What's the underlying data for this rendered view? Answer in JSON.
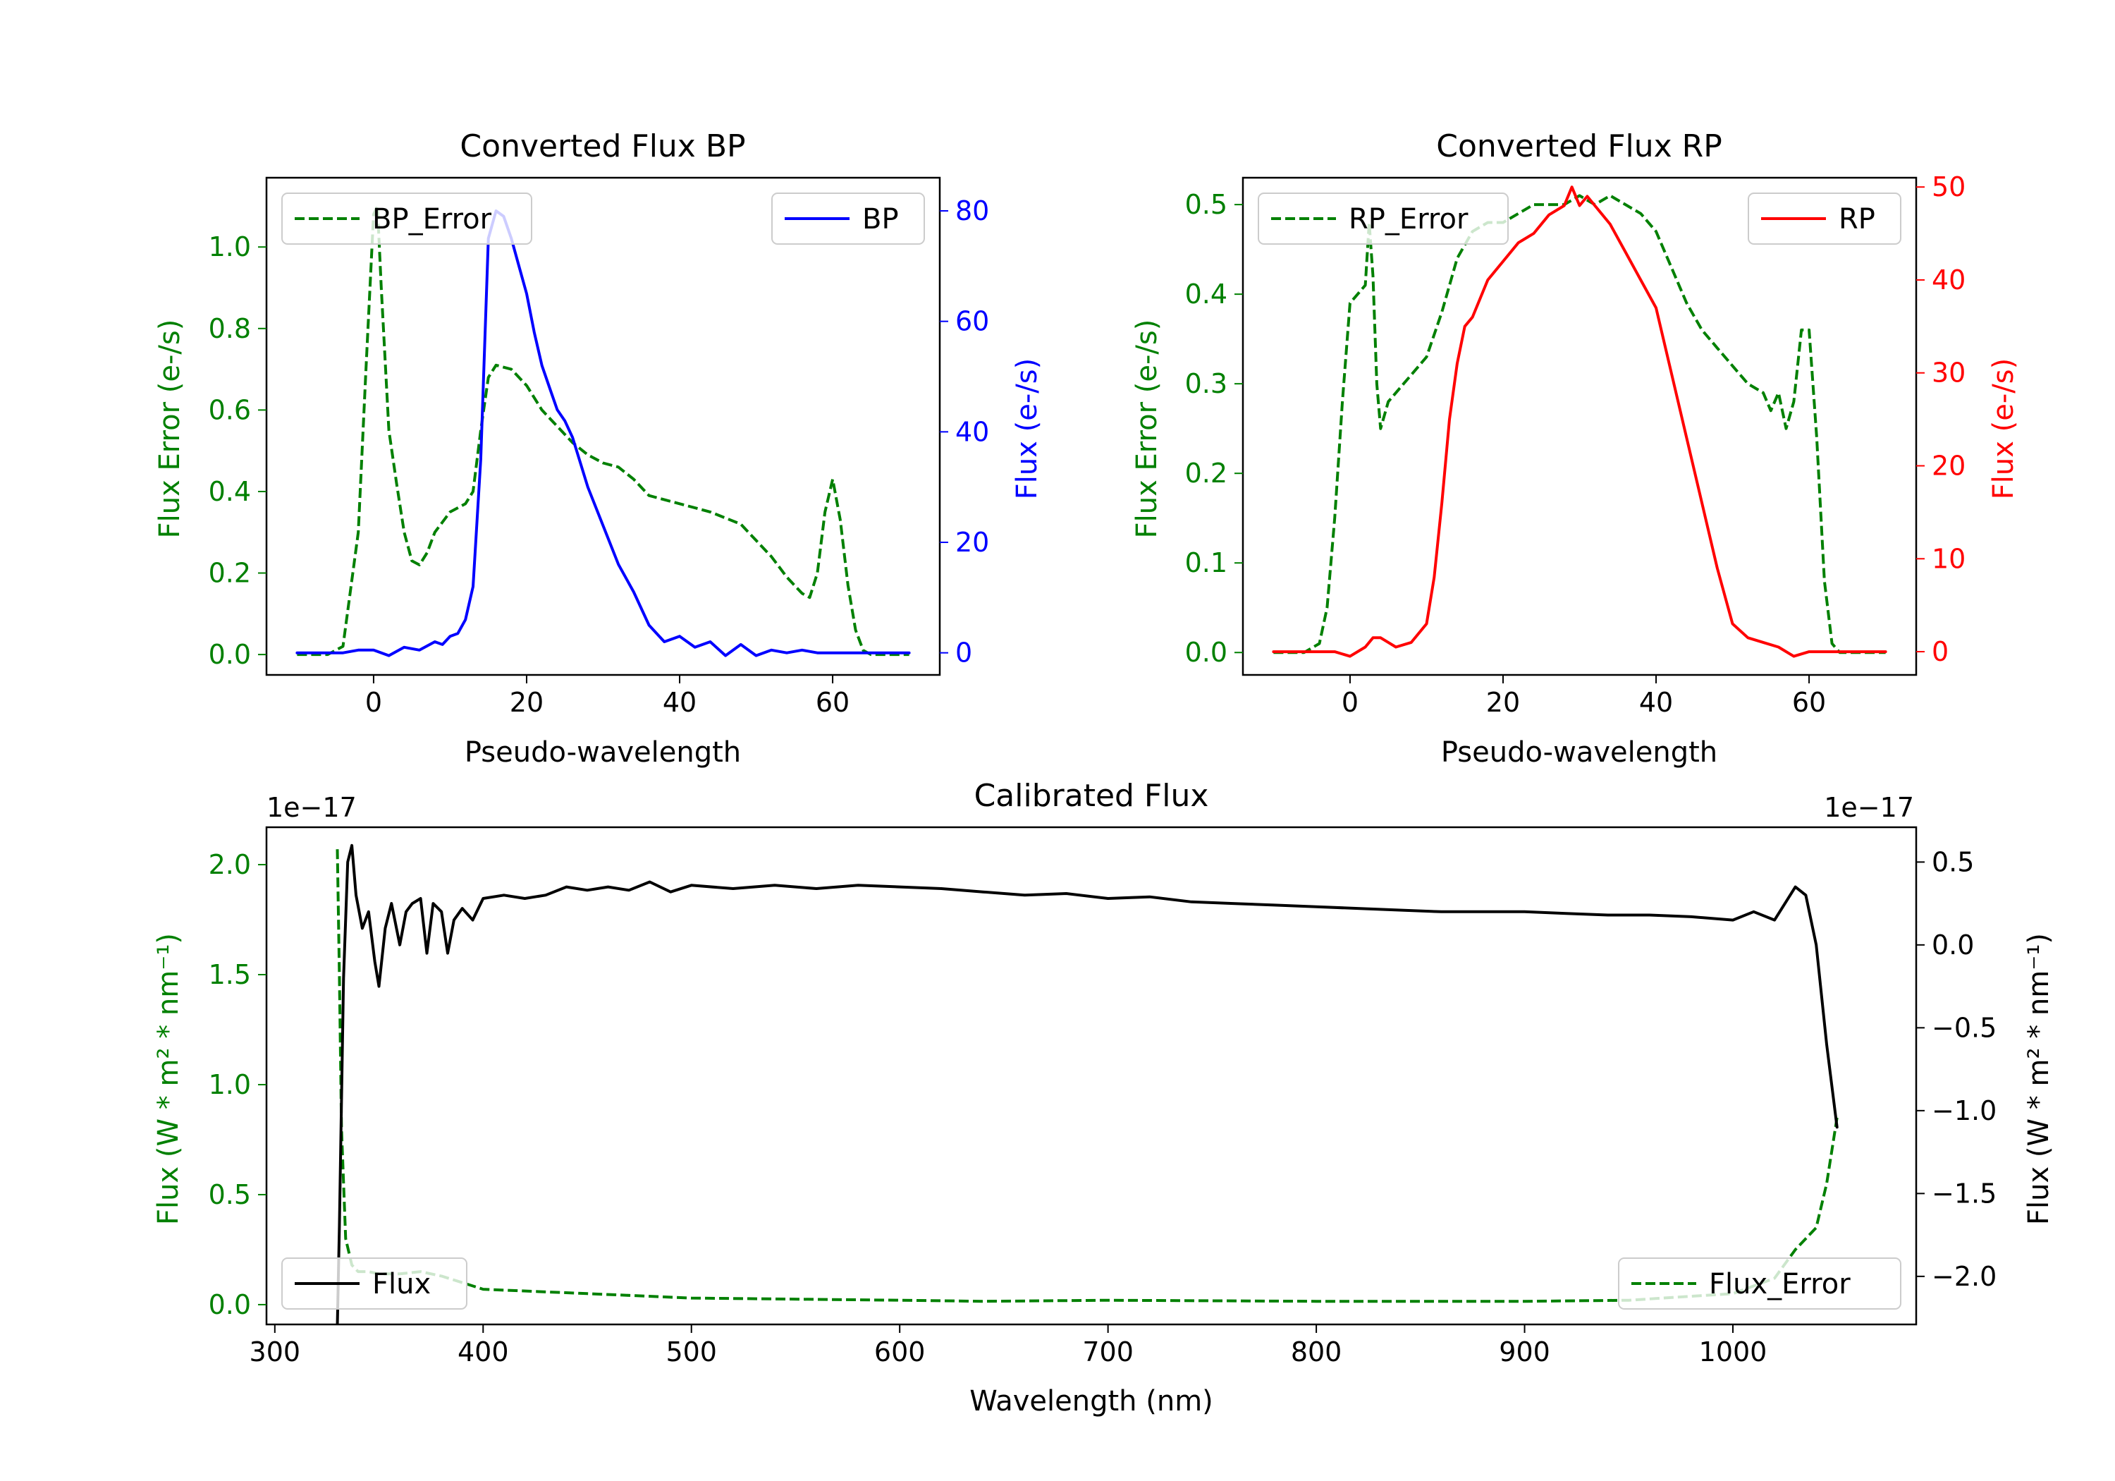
{
  "colors": {
    "green": "#008000",
    "blue": "#0000ff",
    "red": "#ff0000",
    "black": "#000000",
    "frame": "#000000"
  },
  "chart_data": [
    {
      "id": "bp",
      "type": "line",
      "title": "Converted Flux BP",
      "xlabel": "Pseudo-wavelength",
      "ylabel_left": "Flux Error (e-/s)",
      "ylabel_right": "Flux (e-/s)",
      "xlim": [
        -14,
        74
      ],
      "ylim_left": [
        -0.05,
        1.17
      ],
      "ylim_right": [
        -4,
        86
      ],
      "xticks": [
        0,
        20,
        40,
        60
      ],
      "yticks_left": [
        0.0,
        0.2,
        0.4,
        0.6,
        0.8,
        1.0
      ],
      "yticks_right": [
        0,
        20,
        40,
        60,
        80
      ],
      "ytick_left_labels": [
        "0.0",
        "0.2",
        "0.4",
        "0.6",
        "0.8",
        "1.0"
      ],
      "ytick_right_labels": [
        "0",
        "20",
        "40",
        "60",
        "80"
      ],
      "series": [
        {
          "name": "BP_Error",
          "axis": "left",
          "style": "dashed",
          "color": "green",
          "x": [
            -10,
            -6,
            -4,
            -2,
            -1,
            0,
            0.5,
            1,
            2,
            3,
            4,
            5,
            6,
            7,
            8,
            10,
            12,
            13,
            14,
            15,
            16,
            18,
            20,
            22,
            24,
            26,
            28,
            30,
            32,
            34,
            36,
            40,
            44,
            48,
            50,
            52,
            54,
            56,
            57,
            58,
            59,
            60,
            61,
            62,
            63,
            64,
            65,
            66,
            70
          ],
          "y": [
            0.0,
            0.0,
            0.02,
            0.3,
            0.7,
            1.08,
            1.1,
            0.9,
            0.55,
            0.42,
            0.3,
            0.23,
            0.22,
            0.25,
            0.3,
            0.35,
            0.37,
            0.4,
            0.55,
            0.68,
            0.71,
            0.7,
            0.66,
            0.6,
            0.56,
            0.52,
            0.49,
            0.47,
            0.46,
            0.43,
            0.39,
            0.37,
            0.35,
            0.32,
            0.28,
            0.24,
            0.19,
            0.15,
            0.14,
            0.2,
            0.35,
            0.43,
            0.33,
            0.17,
            0.06,
            0.01,
            0.0,
            0.0,
            0.0
          ]
        },
        {
          "name": "BP",
          "axis": "right",
          "style": "solid",
          "color": "blue",
          "x": [
            -10,
            -6,
            -4,
            -2,
            0,
            2,
            4,
            6,
            8,
            9,
            10,
            11,
            12,
            13,
            14,
            15,
            16,
            17,
            18,
            19,
            20,
            21,
            22,
            23,
            24,
            25,
            26,
            28,
            30,
            32,
            34,
            36,
            38,
            40,
            42,
            44,
            46,
            48,
            50,
            52,
            54,
            56,
            58,
            60,
            62,
            64,
            66,
            70
          ],
          "y": [
            0,
            0,
            0,
            0.5,
            0.5,
            -0.5,
            1,
            0.5,
            2,
            1.5,
            3,
            3.5,
            6,
            12,
            35,
            75,
            80,
            79,
            75,
            70,
            65,
            58,
            52,
            48,
            44,
            42,
            39,
            30,
            23,
            16,
            11,
            5,
            2,
            3,
            1,
            2,
            -0.5,
            1.5,
            -0.5,
            0.5,
            0,
            0.5,
            0,
            0,
            0,
            0,
            0,
            0
          ]
        }
      ],
      "legend": [
        {
          "label": "BP_Error",
          "position": "upper-left",
          "style": "dashed",
          "color": "green"
        },
        {
          "label": "BP",
          "position": "upper-right",
          "style": "solid",
          "color": "blue"
        }
      ]
    },
    {
      "id": "rp",
      "type": "line",
      "title": "Converted Flux RP",
      "xlabel": "Pseudo-wavelength",
      "ylabel_left": "Flux Error (e-/s)",
      "ylabel_right": "Flux (e-/s)",
      "xlim": [
        -14,
        74
      ],
      "ylim_left": [
        -0.025,
        0.53
      ],
      "ylim_right": [
        -2.5,
        51
      ],
      "xticks": [
        0,
        20,
        40,
        60
      ],
      "yticks_left": [
        0.0,
        0.1,
        0.2,
        0.3,
        0.4,
        0.5
      ],
      "yticks_right": [
        0,
        10,
        20,
        30,
        40,
        50
      ],
      "ytick_left_labels": [
        "0.0",
        "0.1",
        "0.2",
        "0.3",
        "0.4",
        "0.5"
      ],
      "ytick_right_labels": [
        "0",
        "10",
        "20",
        "30",
        "40",
        "50"
      ],
      "series": [
        {
          "name": "RP_Error",
          "axis": "left",
          "style": "dashed",
          "color": "green",
          "x": [
            -10,
            -6,
            -4,
            -3,
            -2,
            -1,
            0,
            1,
            2,
            2.5,
            3,
            3.5,
            4,
            5,
            6,
            8,
            10,
            12,
            14,
            16,
            18,
            20,
            24,
            28,
            30,
            32,
            34,
            36,
            38,
            40,
            42,
            44,
            46,
            48,
            50,
            52,
            54,
            55,
            56,
            57,
            58,
            59,
            60,
            61,
            62,
            63,
            64,
            70
          ],
          "y": [
            0.0,
            0.0,
            0.01,
            0.05,
            0.15,
            0.28,
            0.39,
            0.4,
            0.41,
            0.48,
            0.42,
            0.3,
            0.25,
            0.28,
            0.29,
            0.31,
            0.33,
            0.38,
            0.44,
            0.47,
            0.48,
            0.48,
            0.5,
            0.5,
            0.51,
            0.5,
            0.51,
            0.5,
            0.49,
            0.47,
            0.43,
            0.39,
            0.36,
            0.34,
            0.32,
            0.3,
            0.29,
            0.27,
            0.29,
            0.25,
            0.28,
            0.36,
            0.36,
            0.24,
            0.08,
            0.01,
            0.0,
            0.0
          ]
        },
        {
          "name": "RP",
          "axis": "right",
          "style": "solid",
          "color": "red",
          "x": [
            -10,
            -6,
            -2,
            0,
            2,
            3,
            4,
            5,
            6,
            8,
            10,
            11,
            12,
            13,
            14,
            15,
            16,
            18,
            20,
            22,
            24,
            26,
            28,
            29,
            30,
            31,
            32,
            34,
            36,
            38,
            40,
            42,
            44,
            46,
            48,
            50,
            52,
            54,
            56,
            58,
            60,
            62,
            66,
            70
          ],
          "y": [
            0,
            0,
            0,
            -0.5,
            0.5,
            1.5,
            1.5,
            1,
            0.5,
            1,
            3,
            8,
            16,
            25,
            31,
            35,
            36,
            40,
            42,
            44,
            45,
            47,
            48,
            50,
            48,
            49,
            48,
            46,
            43,
            40,
            37,
            30,
            23,
            16,
            9,
            3,
            1.5,
            1,
            0.5,
            -0.5,
            0,
            0,
            0,
            0
          ]
        }
      ],
      "legend": [
        {
          "label": "RP_Error",
          "position": "upper-left",
          "style": "dashed",
          "color": "green"
        },
        {
          "label": "RP",
          "position": "upper-right",
          "style": "solid",
          "color": "red"
        }
      ]
    },
    {
      "id": "cal",
      "type": "line",
      "title": "Calibrated Flux",
      "xlabel": "Wavelength (nm)",
      "ylabel_left": "Flux (W * m² * nm⁻¹)",
      "ylabel_right": "Flux (W * m² * nm⁻¹)",
      "offset_left": "1e−17",
      "offset_right": "1e−17",
      "xlim": [
        296,
        1088
      ],
      "ylim_left": [
        -0.09,
        2.17
      ],
      "ylim_right": [
        -2.29,
        0.71
      ],
      "xticks": [
        300,
        400,
        500,
        600,
        700,
        800,
        900,
        1000
      ],
      "yticks_left": [
        0.0,
        0.5,
        1.0,
        1.5,
        2.0
      ],
      "yticks_right": [
        -2.0,
        -1.5,
        -1.0,
        -0.5,
        0.0,
        0.5
      ],
      "ytick_left_labels": [
        "0.0",
        "0.5",
        "1.0",
        "1.5",
        "2.0"
      ],
      "ytick_right_labels": [
        "−2.0",
        "−1.5",
        "−1.0",
        "−0.5",
        "0.0",
        "0.5"
      ],
      "series": [
        {
          "name": "Flux_Error",
          "axis": "left",
          "style": "dashed",
          "color": "green",
          "x": [
            330,
            331,
            332,
            334,
            337,
            340,
            345,
            350,
            360,
            370,
            380,
            390,
            400,
            450,
            500,
            600,
            640,
            700,
            800,
            900,
            950,
            1000,
            1020,
            1030,
            1040,
            1045,
            1050
          ],
          "y": [
            2.07,
            1.5,
            0.8,
            0.3,
            0.18,
            0.15,
            0.15,
            0.14,
            0.14,
            0.15,
            0.13,
            0.1,
            0.07,
            0.05,
            0.03,
            0.02,
            0.015,
            0.02,
            0.015,
            0.015,
            0.02,
            0.05,
            0.12,
            0.25,
            0.35,
            0.55,
            0.85
          ]
        },
        {
          "name": "Flux",
          "axis": "right",
          "style": "solid",
          "color": "black",
          "x": [
            330,
            331,
            333,
            335,
            337,
            339,
            342,
            345,
            348,
            350,
            353,
            356,
            360,
            363,
            366,
            370,
            373,
            376,
            380,
            383,
            386,
            390,
            395,
            400,
            410,
            420,
            430,
            440,
            450,
            460,
            470,
            480,
            490,
            500,
            520,
            540,
            560,
            580,
            600,
            620,
            640,
            660,
            680,
            700,
            720,
            740,
            760,
            780,
            800,
            820,
            840,
            860,
            880,
            900,
            920,
            940,
            960,
            980,
            1000,
            1010,
            1020,
            1030,
            1035,
            1040,
            1045,
            1050
          ],
          "y": [
            -2.3,
            -1.7,
            -0.2,
            0.5,
            0.6,
            0.3,
            0.1,
            0.2,
            -0.1,
            -0.25,
            0.1,
            0.25,
            0.0,
            0.2,
            0.25,
            0.28,
            -0.05,
            0.25,
            0.2,
            -0.05,
            0.15,
            0.22,
            0.15,
            0.28,
            0.3,
            0.28,
            0.3,
            0.35,
            0.33,
            0.35,
            0.33,
            0.38,
            0.32,
            0.36,
            0.34,
            0.36,
            0.34,
            0.36,
            0.35,
            0.34,
            0.32,
            0.3,
            0.31,
            0.28,
            0.29,
            0.26,
            0.25,
            0.24,
            0.23,
            0.22,
            0.21,
            0.2,
            0.2,
            0.2,
            0.19,
            0.18,
            0.18,
            0.17,
            0.15,
            0.2,
            0.15,
            0.35,
            0.3,
            0.0,
            -0.6,
            -1.1
          ]
        }
      ],
      "legend": [
        {
          "label": "Flux",
          "position": "lower-left",
          "style": "solid",
          "color": "black"
        },
        {
          "label": "Flux_Error",
          "position": "lower-right",
          "style": "dashed",
          "color": "green"
        }
      ]
    }
  ]
}
